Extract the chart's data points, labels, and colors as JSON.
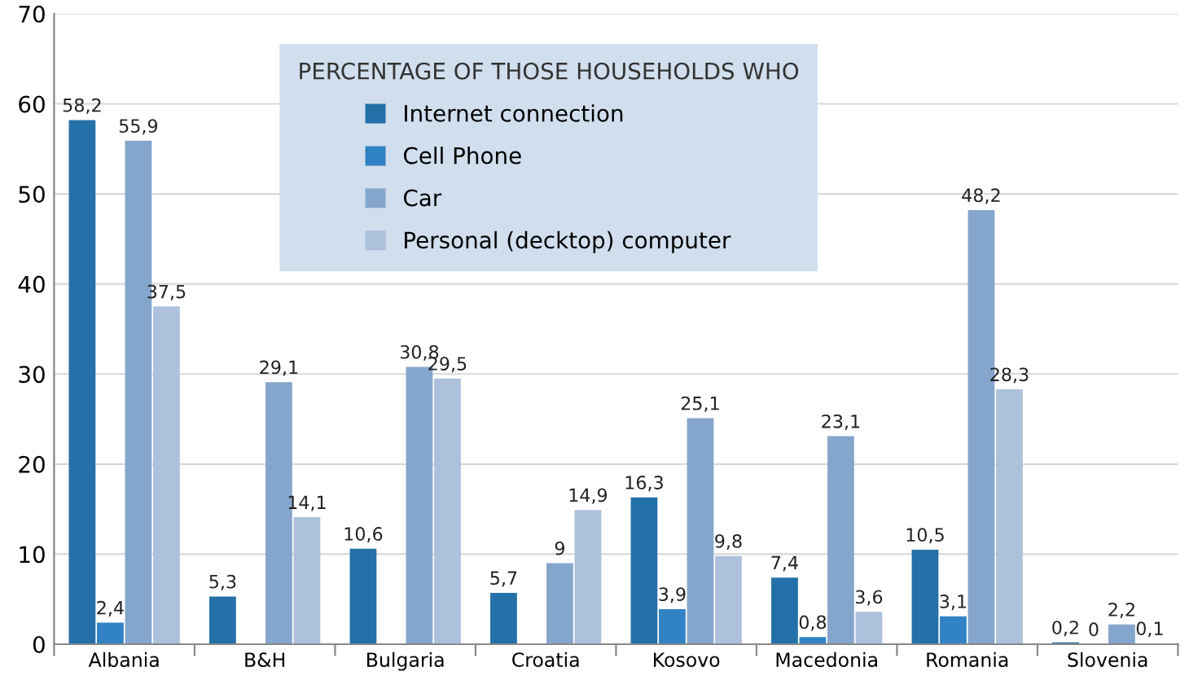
{
  "chart_data": {
    "type": "bar",
    "legend_title": "PERCENTAGE OF THOSE HOUSEHOLDS WHO",
    "categories": [
      "Albania",
      "B&H",
      "Bulgaria",
      "Croatia",
      "Kosovo",
      "Macedonia",
      "Romania",
      "Slovenia"
    ],
    "series": [
      {
        "name": "Internet connection",
        "color": "#2470a8",
        "values": [
          58.2,
          5.3,
          10.6,
          5.7,
          16.3,
          7.4,
          10.5,
          0.2
        ],
        "value_labels": [
          "58,2",
          "5,3",
          "10,6",
          "5,7",
          "16,3",
          "7,4",
          "10,5",
          "0,2"
        ]
      },
      {
        "name": "Cell Phone",
        "color": "#3182c4",
        "values": [
          2.4,
          null,
          null,
          null,
          3.9,
          0.8,
          3.1,
          0
        ],
        "value_labels": [
          "2,4",
          null,
          null,
          null,
          "3,9",
          "0,8",
          "3,1",
          "0"
        ]
      },
      {
        "name": "Car",
        "color": "#85a6cc",
        "values": [
          55.9,
          29.1,
          30.8,
          9,
          25.1,
          23.1,
          48.2,
          2.2
        ],
        "value_labels": [
          "55,9",
          "29,1",
          "30,8",
          "9",
          "25,1",
          "23,1",
          "48,2",
          "2,2"
        ]
      },
      {
        "name": "Personal (decktop) computer",
        "color": "#adc0dc",
        "values": [
          37.5,
          14.1,
          29.5,
          14.9,
          9.8,
          3.6,
          28.3,
          0.1
        ],
        "value_labels": [
          "37,5",
          "14,1",
          "29,5",
          "14,9",
          "9,8",
          "3,6",
          "28,3",
          "0,1"
        ]
      }
    ],
    "ylim": [
      0,
      70
    ],
    "yticks": [
      0,
      10,
      20,
      30,
      40,
      50,
      60,
      70
    ],
    "grid": "y",
    "legend": "top"
  }
}
